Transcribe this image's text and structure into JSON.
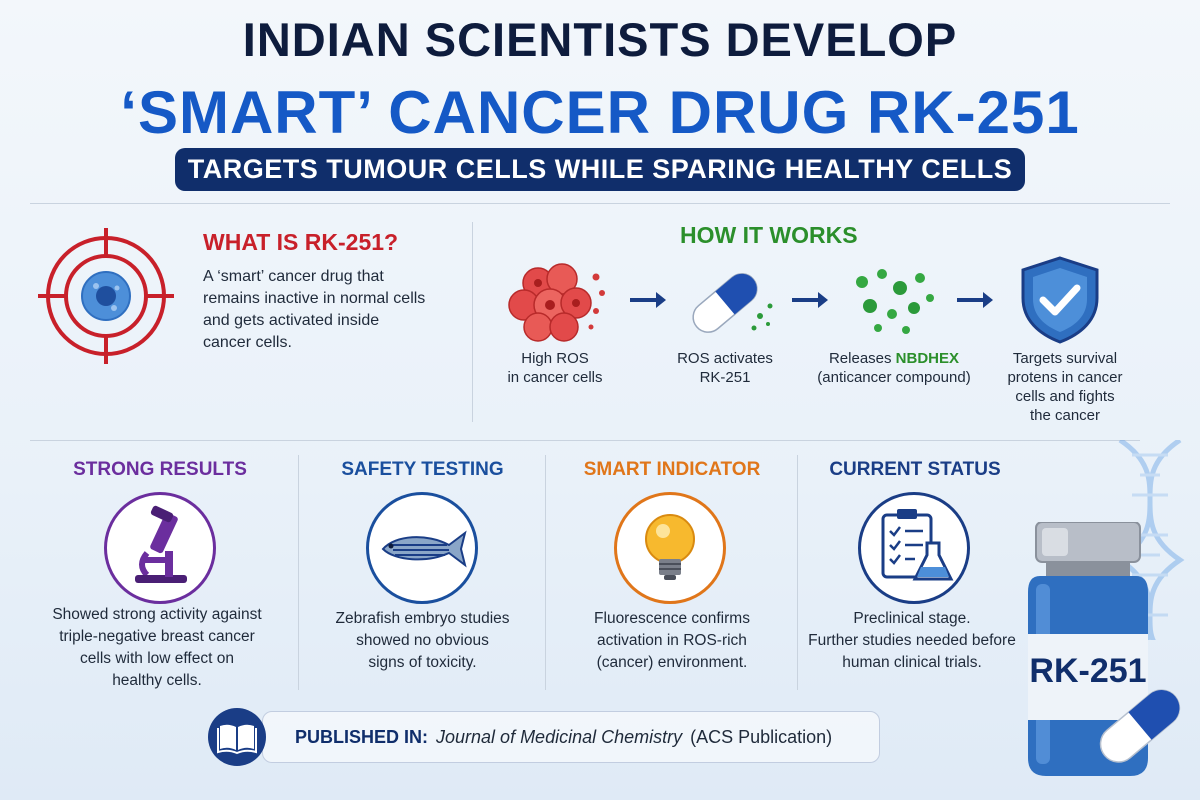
{
  "header": {
    "line1": "INDIAN SCIENTISTS DEVELOP",
    "line2": "‘SMART’ CANCER DRUG RK-251",
    "subtitle": "TARGETS TUMOUR CELLS WHILE SPARING HEALTHY CELLS"
  },
  "what": {
    "heading": "WHAT IS RK-251?",
    "lines": [
      "A ‘smart’ cancer drug that",
      "remains inactive in normal cells",
      "and gets activated inside",
      "cancer cells."
    ],
    "icon": "target-cell-icon"
  },
  "how": {
    "heading": "HOW IT WORKS",
    "steps": [
      {
        "lines": [
          "High ROS",
          "in cancer cells"
        ],
        "icon": "cancer-cells-icon"
      },
      {
        "lines": [
          "ROS activates",
          "RK-251"
        ],
        "icon": "capsule-icon"
      },
      {
        "pre": "Releases ",
        "highlight": "NBDHEX",
        "line2": "(anticancer compound)",
        "icon": "particles-icon"
      },
      {
        "lines": [
          "Targets survival",
          "protens in cancer",
          "cells and fights",
          "the cancer"
        ],
        "icon": "shield-check-icon"
      }
    ]
  },
  "cards": [
    {
      "heading": "STRONG RESULTS",
      "color": "#6b2e9e",
      "icon": "microscope-icon",
      "lines": [
        "Showed strong activity against",
        "triple-negative breast cancer",
        "cells with low effect on",
        "healthy cells."
      ]
    },
    {
      "heading": "SAFETY TESTING",
      "color": "#1a4f9e",
      "icon": "zebrafish-icon",
      "lines": [
        "Zebrafish embryo studies",
        "showed no obvious",
        "signs of toxicity."
      ]
    },
    {
      "heading": "SMART INDICATOR",
      "color": "#e0761a",
      "icon": "lightbulb-icon",
      "lines": [
        "Fluorescence confirms",
        "activation in ROS-rich",
        "(cancer) environment."
      ]
    },
    {
      "heading": "CURRENT STATUS",
      "color": "#1a3d86",
      "icon": "clipboard-flask-icon",
      "lines": [
        "Preclinical stage.",
        "Further studies needed before",
        "human clinical trials."
      ]
    }
  ],
  "published": {
    "label": "PUBLISHED IN:",
    "journal": "Journal of Medicinal Chemistry",
    "publisher": "(ACS Publication)",
    "icon": "book-icon"
  },
  "vial": {
    "label": "RK-251",
    "icon": "vial-icon"
  },
  "decor": {
    "dna": "dna-helix-icon"
  },
  "colors": {
    "navy": "#102e6b",
    "blue": "#1559c6",
    "red": "#c8202a",
    "green": "#2b8f2b"
  }
}
